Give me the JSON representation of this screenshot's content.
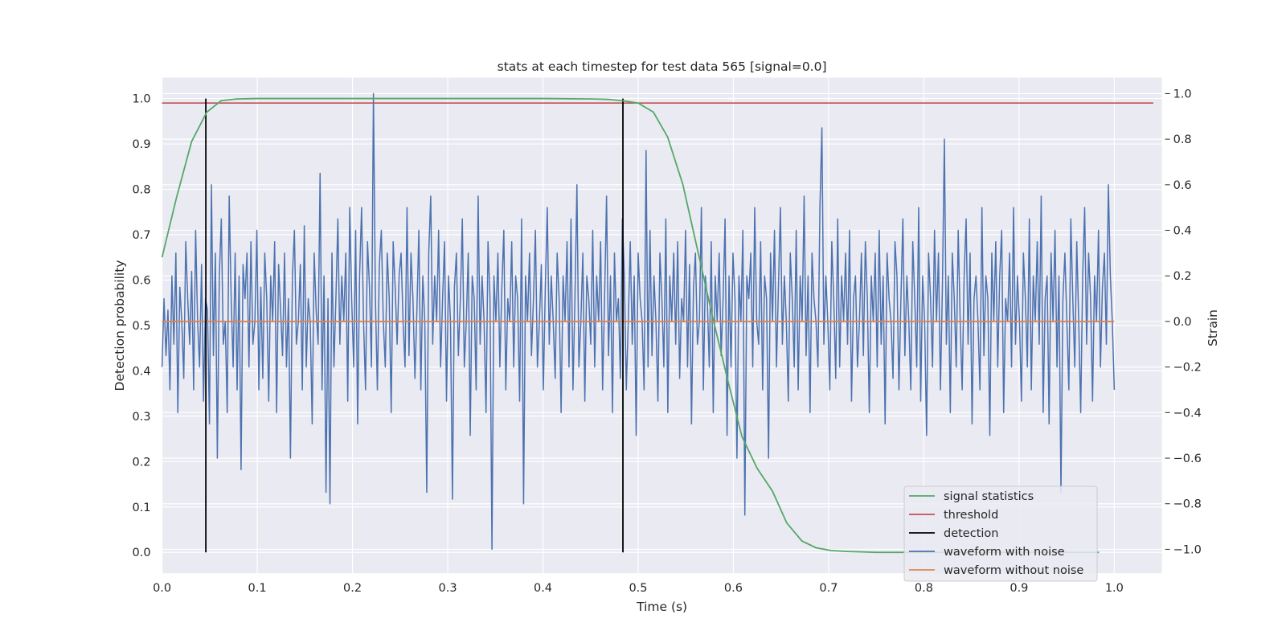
{
  "chart_data": {
    "type": "line",
    "title": "stats at each timestep for test data 565 [signal=0.0]",
    "xlabel": "Time (s)",
    "ylabel": "Detection probability",
    "y2label": "Strain",
    "xlim": [
      0.0,
      1.05
    ],
    "ylim": [
      -0.046,
      1.046
    ],
    "y2lim": [
      -1.105,
      1.07
    ],
    "x_ticks": [
      "0.0",
      "0.1",
      "0.2",
      "0.3",
      "0.4",
      "0.5",
      "0.6",
      "0.7",
      "0.8",
      "0.9",
      "1.0"
    ],
    "y_ticks": [
      "0.0",
      "0.1",
      "0.2",
      "0.3",
      "0.4",
      "0.5",
      "0.6",
      "0.7",
      "0.8",
      "0.9",
      "1.0"
    ],
    "y2_ticks": [
      "−1.0",
      "−0.8",
      "−0.6",
      "−0.4",
      "−0.2",
      "0.0",
      "0.2",
      "0.4",
      "0.6",
      "0.8",
      "1.0"
    ],
    "grid": true,
    "legend_position": "lower right",
    "colors": {
      "signal_statistics": "#55a868",
      "threshold": "#c44e52",
      "detection": "#000000",
      "waveform_with_noise": "#4c72b0",
      "waveform_without_noise": "#dd8452",
      "axes_background": "#eaeaf2",
      "grid": "#ffffff"
    },
    "series": [
      {
        "name": "signal statistics",
        "axis": "left",
        "x": [
          0.0,
          0.015,
          0.031,
          0.047,
          0.062,
          0.078,
          0.1,
          0.2,
          0.3,
          0.4,
          0.453,
          0.469,
          0.484,
          0.5,
          0.516,
          0.531,
          0.547,
          0.562,
          0.578,
          0.594,
          0.609,
          0.625,
          0.641,
          0.656,
          0.672,
          0.687,
          0.703,
          0.719,
          0.734,
          0.75,
          0.8,
          0.9,
          0.984
        ],
        "y": [
          0.65,
          0.78,
          0.905,
          0.97,
          0.995,
          0.999,
          1.0,
          1.0,
          1.0,
          1.0,
          0.999,
          0.998,
          0.995,
          0.99,
          0.97,
          0.915,
          0.81,
          0.67,
          0.52,
          0.38,
          0.255,
          0.185,
          0.135,
          0.065,
          0.025,
          0.01,
          0.004,
          0.002,
          0.001,
          0.0,
          0.0,
          0.0,
          0.0
        ]
      },
      {
        "name": "threshold",
        "axis": "left",
        "x": [
          0.0,
          1.041
        ],
        "y": [
          0.99,
          0.99
        ]
      },
      {
        "name": "detection",
        "axis": "left",
        "type": "vlines",
        "x": [
          0.046,
          0.484
        ],
        "y": [
          0.0,
          1.0
        ]
      },
      {
        "name": "waveform with noise",
        "axis": "right",
        "x_range": [
          0.0,
          1.0
        ],
        "values": [
          -0.2,
          0.1,
          -0.15,
          0.05,
          -0.3,
          0.2,
          -0.1,
          0.3,
          -0.4,
          0.15,
          0.0,
          -0.25,
          0.35,
          0.1,
          -0.1,
          0.22,
          -0.3,
          0.4,
          0.0,
          -0.2,
          0.25,
          -0.35,
          0.1,
          0.05,
          -0.45,
          0.6,
          -0.15,
          0.3,
          -0.6,
          0.2,
          0.45,
          -0.1,
          0.0,
          -0.4,
          0.55,
          0.1,
          -0.2,
          0.3,
          -0.3,
          0.2,
          -0.65,
          0.25,
          0.1,
          0.3,
          -0.2,
          0.35,
          -0.1,
          0.0,
          0.4,
          -0.3,
          0.15,
          -0.25,
          0.3,
          0.1,
          -0.35,
          0.2,
          0.0,
          0.35,
          -0.4,
          0.25,
          0.05,
          -0.15,
          0.3,
          -0.2,
          0.1,
          -0.6,
          0.2,
          0.4,
          -0.1,
          0.0,
          0.25,
          -0.3,
          0.42,
          -0.2,
          0.1,
          0.0,
          -0.45,
          0.3,
          0.05,
          -0.1,
          0.65,
          -0.3,
          0.2,
          -0.75,
          0.1,
          -0.8,
          0.3,
          -0.2,
          0.1,
          0.45,
          -0.1,
          0.2,
          0.0,
          0.3,
          -0.35,
          0.5,
          0.1,
          -0.2,
          0.4,
          -0.45,
          0.2,
          0.5,
          0.0,
          -0.3,
          0.35,
          0.15,
          -0.2,
          1.0,
          0.1,
          -0.3,
          0.25,
          0.4,
          0.0,
          -0.2,
          0.3,
          0.1,
          -0.4,
          0.35,
          0.15,
          -0.1,
          0.2,
          0.3,
          0.0,
          -0.2,
          0.5,
          -0.15,
          0.3,
          0.1,
          -0.25,
          0.05,
          0.4,
          -0.3,
          0.2,
          0.0,
          -0.75,
          0.3,
          0.55,
          -0.1,
          0.2,
          0.0,
          0.4,
          -0.2,
          0.1,
          0.35,
          -0.35,
          0.2,
          0.0,
          -0.78,
          0.15,
          0.3,
          -0.15,
          0.1,
          0.45,
          -0.2,
          0.0,
          0.3,
          -0.5,
          0.2,
          0.1,
          -0.3,
          0.55,
          -0.1,
          0.2,
          0.0,
          -0.4,
          0.35,
          0.1,
          -1.0,
          0.2,
          0.0,
          0.3,
          -0.2,
          0.15,
          0.4,
          -0.3,
          0.1,
          0.0,
          0.35,
          -0.2,
          0.2,
          0.1,
          -0.35,
          0.45,
          -0.8,
          0.2,
          0.0,
          0.3,
          -0.15,
          0.1,
          0.4,
          -0.2,
          0.0,
          0.25,
          -0.3,
          0.15,
          0.5,
          -0.1,
          0.2,
          0.0,
          -0.25,
          0.3,
          0.1,
          -0.4,
          0.2,
          0.0,
          0.35,
          -0.2,
          0.45,
          -0.3,
          0.1,
          0.6,
          -0.2,
          0.0,
          0.3,
          -0.35,
          0.2,
          0.1,
          -0.1,
          0.4,
          -0.2,
          0.2,
          0.0,
          0.35,
          -0.3,
          0.1,
          0.55,
          -0.15,
          0.2,
          -0.4,
          0.3,
          0.0,
          0.1,
          -0.25,
          0.45,
          0.2,
          -0.3,
          0.0,
          0.35,
          -0.1,
          0.2,
          -0.5,
          0.3,
          0.1,
          0.0,
          -0.3,
          0.75,
          -0.2,
          0.4,
          -0.15,
          0.2,
          0.0,
          -0.35,
          0.3,
          0.1,
          -0.2,
          0.45,
          -0.4,
          0.2,
          0.0,
          0.3,
          -0.1,
          0.35,
          -0.25,
          0.1,
          0.0,
          0.4,
          -0.2,
          0.25,
          -0.45,
          0.15,
          0.3,
          -0.1,
          0.0,
          0.5,
          -0.3,
          0.2,
          0.1,
          -0.2,
          0.35,
          -0.4,
          0.2,
          0.0,
          0.3,
          -0.15,
          0.1,
          0.45,
          -0.5,
          0.2,
          -0.2,
          0.3,
          0.1,
          -0.6,
          0.2,
          0.0,
          0.4,
          -0.85,
          0.2,
          0.1,
          0.3,
          -0.2,
          0.5,
          0.0,
          -0.1,
          0.35,
          -0.3,
          0.2,
          0.1,
          -0.6,
          0.3,
          0.0,
          0.4,
          -0.2,
          0.15,
          0.5,
          -0.1,
          0.2,
          0.0,
          -0.35,
          0.3,
          0.1,
          -0.2,
          0.4,
          -0.3,
          0.2,
          0.0,
          0.55,
          -0.15,
          0.2,
          -0.4,
          0.3,
          0.1,
          0.0,
          -0.2,
          0.5,
          0.85,
          -0.1,
          0.2,
          0.0,
          -0.3,
          0.35,
          0.1,
          -0.25,
          0.45,
          -0.2,
          0.2,
          0.0,
          0.3,
          -0.1,
          0.4,
          -0.35,
          0.1,
          0.2,
          -0.2,
          0.0,
          0.3,
          -0.15,
          0.35,
          0.1,
          -0.4,
          0.2,
          0.0,
          0.3,
          -0.2,
          0.4,
          -0.1,
          0.2,
          -0.45,
          0.3,
          0.1,
          0.0,
          -0.25,
          0.35,
          0.2,
          -0.3,
          0.1,
          0.45,
          -0.15,
          0.2,
          0.0,
          -0.3,
          0.35,
          0.1,
          -0.2,
          0.5,
          -0.35,
          0.2,
          0.0,
          -0.5,
          0.3,
          0.1,
          -0.2,
          0.4,
          0.0,
          0.3,
          -0.3,
          0.15,
          0.8,
          -0.1,
          0.2,
          -0.4,
          0.3,
          0.1,
          -0.2,
          0.4,
          0.0,
          -0.3,
          0.2,
          0.45,
          -0.1,
          0.3,
          -0.45,
          0.1,
          0.2,
          0.0,
          -0.3,
          0.5,
          -0.15,
          0.2,
          0.1,
          -0.5,
          0.3,
          0.0,
          0.35,
          -0.2,
          0.2,
          0.4,
          -0.4,
          0.1,
          0.0,
          0.3,
          -0.2,
          0.5,
          -0.1,
          0.2,
          0.0,
          -0.35,
          0.3,
          0.1,
          -0.2,
          0.45,
          -0.3,
          0.2,
          0.0,
          0.35,
          -0.1,
          0.55,
          -0.4,
          0.1,
          0.2,
          -0.45,
          0.3,
          0.0,
          0.4,
          -0.2,
          0.2,
          -0.75,
          0.1,
          0.3,
          0.0,
          -0.3,
          0.45,
          0.1,
          -0.2,
          0.35,
          0.0,
          -0.4,
          0.2,
          0.5,
          -0.1,
          0.3,
          0.1,
          -0.35,
          0.2,
          0.0,
          0.4,
          -0.2,
          0.15,
          0.3,
          -0.1,
          0.6,
          0.2,
          0.0,
          -0.3
        ]
      },
      {
        "name": "waveform without noise",
        "axis": "right",
        "x": [
          0.0,
          1.0
        ],
        "y": [
          0.0,
          0.0
        ]
      }
    ]
  }
}
